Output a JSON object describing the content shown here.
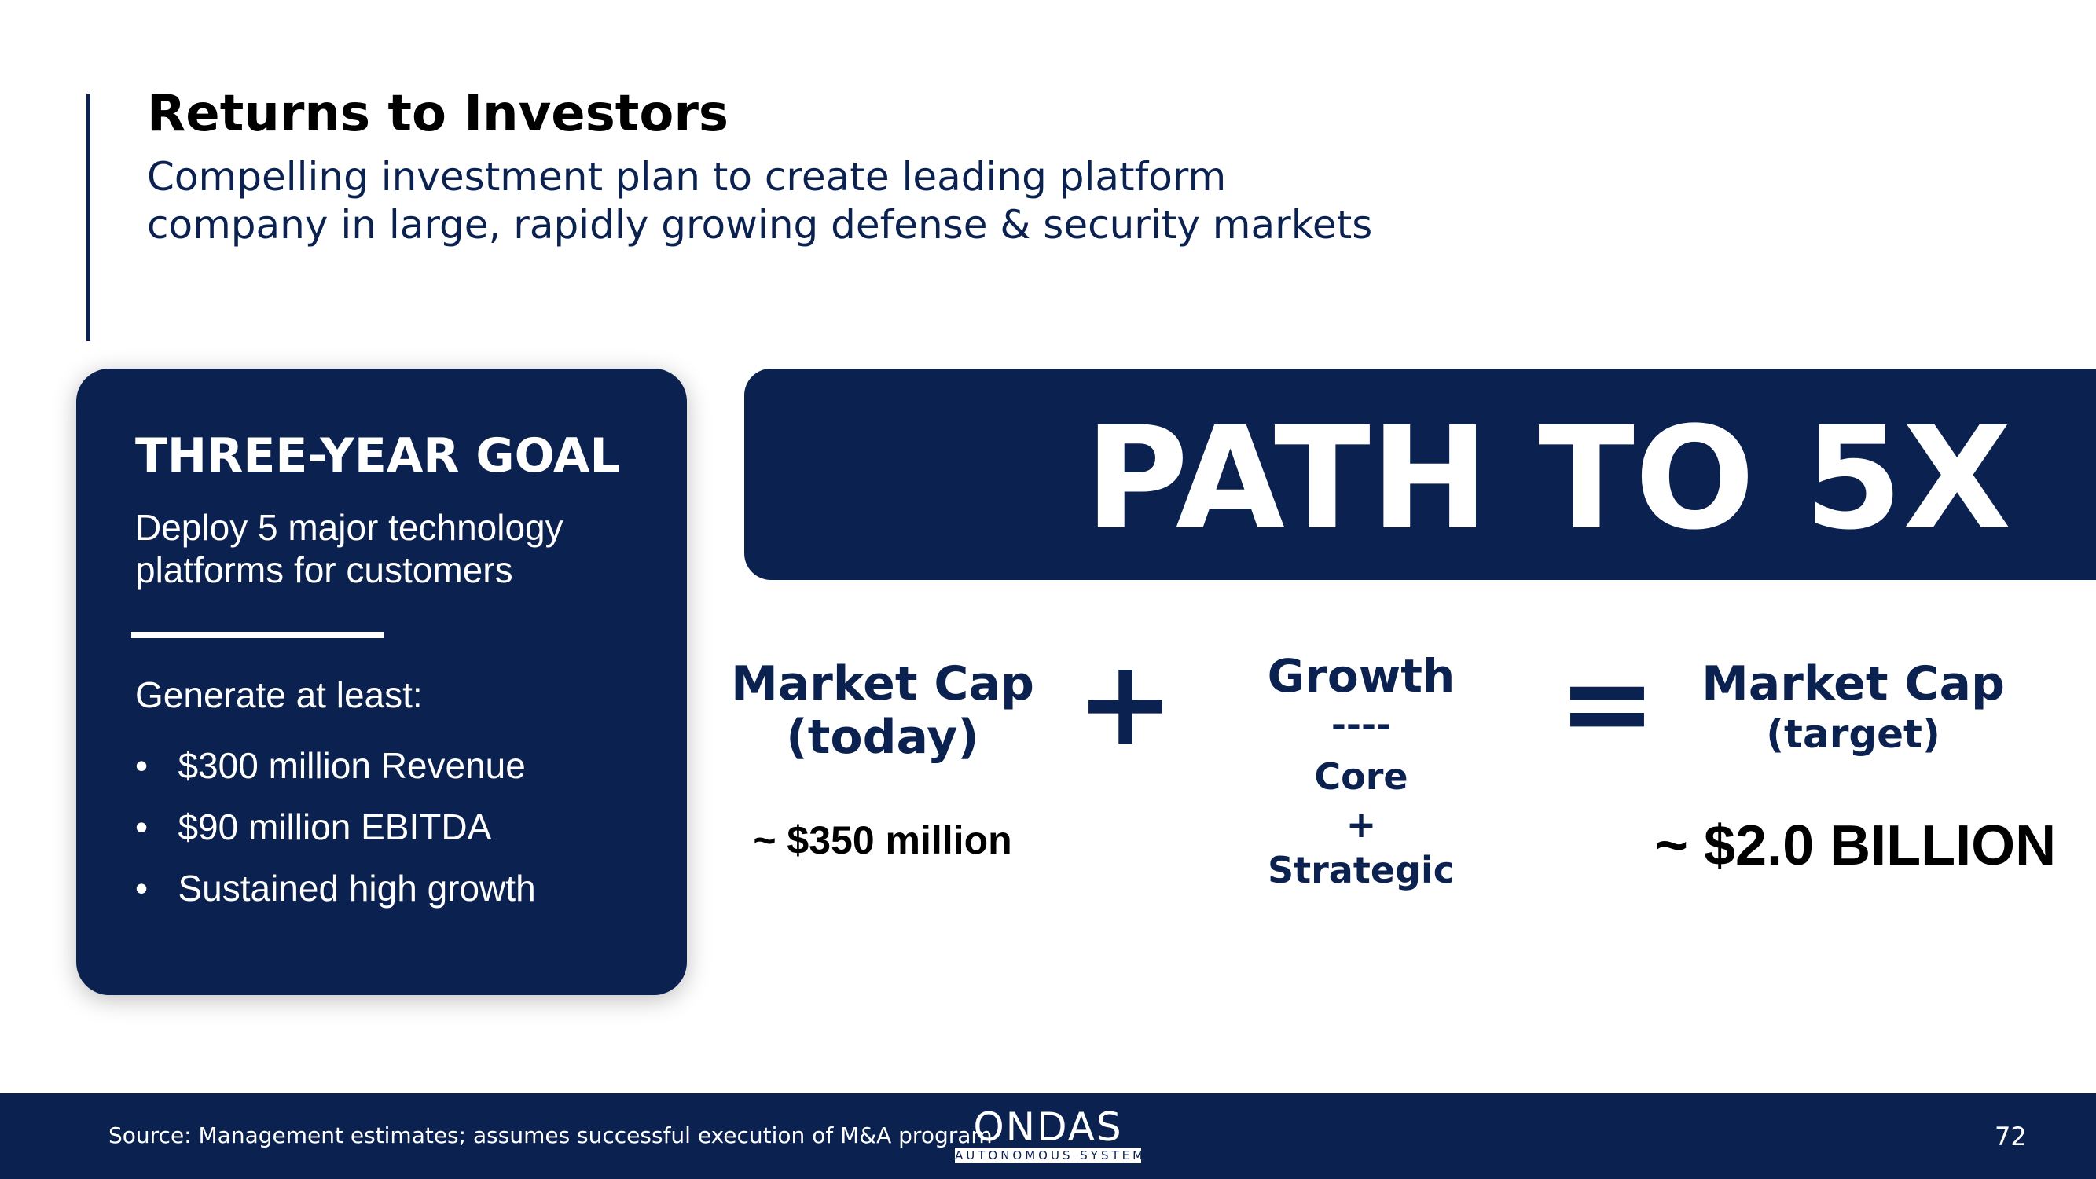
{
  "header": {
    "title": "Returns to Investors",
    "subtitle": [
      "Compelling investment plan to create leading platform",
      "company in large, rapidly growing defense & security markets"
    ]
  },
  "goal_card": {
    "heading": "THREE-YEAR GOAL",
    "description": [
      "Deploy 5 major technology",
      "platforms for customers"
    ],
    "intro": "Generate at least:",
    "bullets": [
      "$300 million Revenue",
      "$90 million EBITDA",
      "Sustained high growth"
    ]
  },
  "banner": {
    "title": "PATH TO 5X"
  },
  "equation": {
    "today": {
      "label": [
        "Market Cap",
        "(today)"
      ],
      "value": "~ $350 million"
    },
    "operator_plus": "+",
    "growth": {
      "label": "Growth",
      "divider": "----",
      "parts": [
        "Core",
        "+",
        "Strategic"
      ]
    },
    "operator_equals": "=",
    "target": {
      "label": [
        "Market Cap",
        "(target)"
      ],
      "value": "~ $2.0 BILLION"
    }
  },
  "footer": {
    "source": "Source: Management estimates; assumes successful execution of M&A program",
    "logo": "ONDAS",
    "logo_tagline": "AUTONOMOUS SYSTEMS",
    "page_number": "72"
  }
}
